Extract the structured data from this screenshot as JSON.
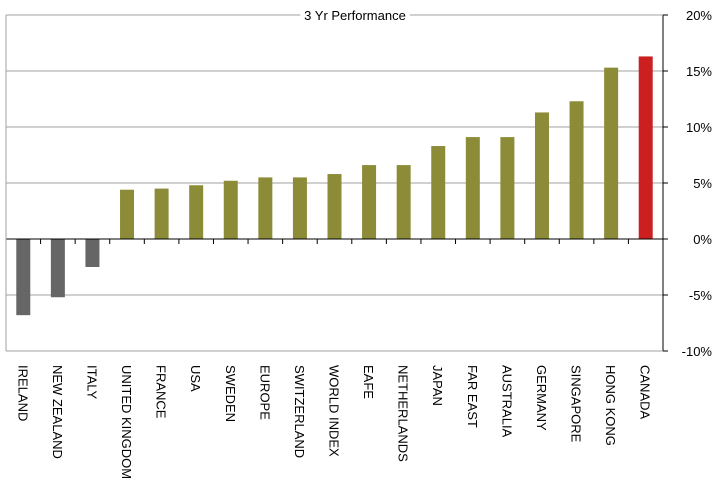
{
  "chart_data": {
    "type": "bar",
    "title": "3 Yr Performance",
    "xlabel": "",
    "ylabel": "",
    "categories": [
      "IRELAND",
      "NEW ZEALAND",
      "ITALY",
      "UNITED KINGDOM",
      "FRANCE",
      "USA",
      "SWEDEN",
      "EUROPE",
      "SWITZERLAND",
      "WORLD INDEX",
      "EAFE",
      "NETHERLANDS",
      "JAPAN",
      "FAR EAST",
      "AUSTRALIA",
      "GERMANY",
      "SINGAPORE",
      "HONG KONG",
      "CANADA"
    ],
    "values": [
      -6.8,
      -5.2,
      -2.5,
      4.4,
      4.5,
      4.8,
      5.2,
      5.5,
      5.5,
      5.8,
      6.6,
      6.6,
      8.3,
      9.1,
      9.1,
      11.3,
      12.3,
      15.3,
      16.3
    ],
    "value_unit": "%",
    "ylim": [
      -10,
      20
    ],
    "yticks": [
      -10,
      -5,
      0,
      5,
      10,
      15,
      20
    ],
    "ytick_labels": [
      "-10%",
      "-5%",
      "0%",
      "5%",
      "10%",
      "15%",
      "20%"
    ],
    "grid": true,
    "y_axis_side": "right",
    "colors": {
      "negative": "#666666",
      "positive": "#8c8c38",
      "highlight": "#cc1f1f",
      "grid": "#a0a0a0",
      "axis": "#000000"
    },
    "highlight_category": "CANADA"
  }
}
